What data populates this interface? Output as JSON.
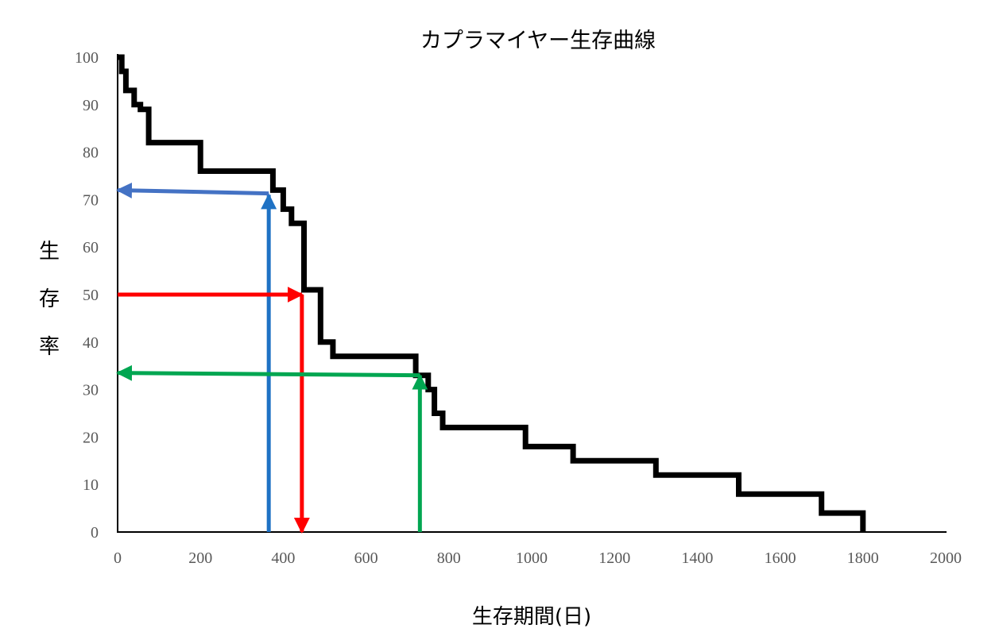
{
  "chart_data": {
    "type": "line",
    "title": "カプラマイヤー生存曲線",
    "xlabel": "生存期間(日)",
    "ylabel": [
      "生",
      "存",
      "率"
    ],
    "xlim": [
      0,
      2000
    ],
    "ylim": [
      0,
      100
    ],
    "xticks": [
      0,
      200,
      400,
      600,
      800,
      1000,
      1200,
      1400,
      1600,
      1800,
      2000
    ],
    "yticks": [
      0,
      10,
      20,
      30,
      40,
      50,
      60,
      70,
      80,
      90,
      100
    ],
    "grid": false,
    "legend": "none",
    "series": [
      {
        "step": true,
        "color": "#000000",
        "x": [
          0,
          0,
          10,
          10,
          20,
          20,
          40,
          40,
          55,
          55,
          75,
          75,
          200,
          200,
          375,
          375,
          400,
          400,
          420,
          420,
          450,
          450,
          490,
          490,
          520,
          520,
          720,
          720,
          750,
          750,
          765,
          765,
          785,
          785,
          985,
          985,
          1100,
          1100,
          1300,
          1300,
          1500,
          1500,
          1700,
          1700,
          1800,
          1800
        ],
        "y": [
          100,
          100,
          100,
          97,
          97,
          93,
          93,
          90,
          90,
          89,
          89,
          82,
          82,
          76,
          76,
          72,
          72,
          68,
          68,
          65,
          65,
          51,
          51,
          40,
          40,
          37,
          37,
          33,
          33,
          30,
          30,
          25,
          25,
          22,
          22,
          18,
          18,
          15,
          15,
          12,
          12,
          8,
          8,
          4,
          4,
          0
        ]
      }
    ],
    "annotations": [
      {
        "kind": "arrow",
        "color": "#1F72C4",
        "from": [
          365,
          0
        ],
        "to": [
          365,
          71
        ]
      },
      {
        "kind": "arrow",
        "color": "#4472C4",
        "from": [
          365,
          71.3
        ],
        "to": [
          0,
          72
        ]
      },
      {
        "kind": "arrow",
        "color": "#FF0000",
        "from": [
          0,
          50
        ],
        "to": [
          445,
          50
        ]
      },
      {
        "kind": "arrow",
        "color": "#FF0000",
        "from": [
          445,
          50
        ],
        "to": [
          445,
          0
        ]
      },
      {
        "kind": "arrow",
        "color": "#00A651",
        "from": [
          730,
          0
        ],
        "to": [
          730,
          33
        ]
      },
      {
        "kind": "arrow",
        "color": "#00A651",
        "from": [
          730,
          33
        ],
        "to": [
          0,
          33.5
        ]
      }
    ]
  }
}
